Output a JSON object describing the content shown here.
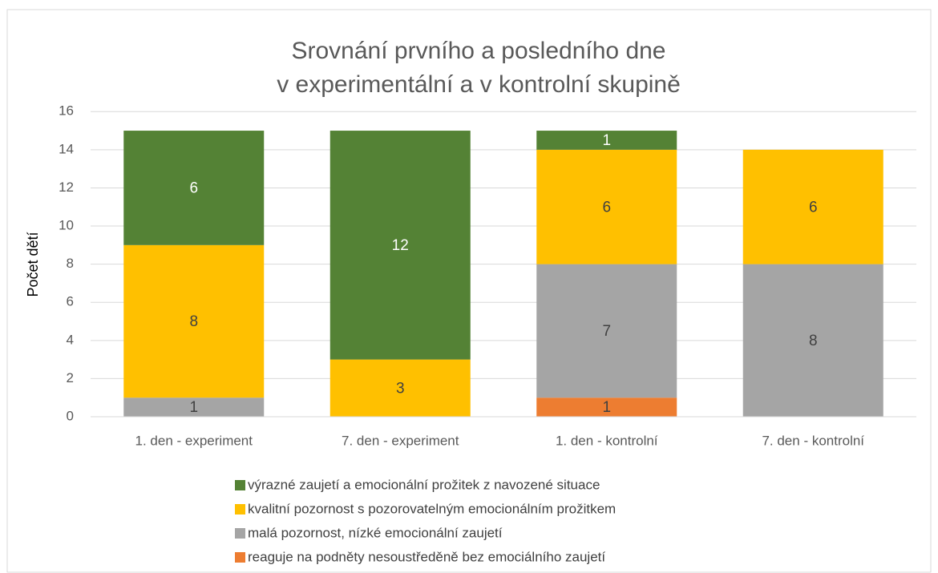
{
  "chart_data": {
    "type": "stacked_bar",
    "title": [
      "Srovnání prvního a posledního dne",
      "v experimentální a v kontrolní skupině"
    ],
    "ylabel": "Počet dětí",
    "categories": [
      "1. den - experiment",
      "7. den - experiment",
      "1. den - kontrolní",
      "7. den - kontrolní"
    ],
    "series": [
      {
        "name": "reaguje na podněty nesoustředěně bez emociálního zaujetí",
        "color": "#ed7d31",
        "label_color": "#404040",
        "values": [
          null,
          null,
          1,
          null
        ]
      },
      {
        "name": "malá pozornost, nízké emocionální zaujetí",
        "color": "#a5a5a5",
        "label_color": "#404040",
        "values": [
          1,
          null,
          7,
          8
        ]
      },
      {
        "name": "kvalitní pozornost s pozorovatelným emocionálním prožitkem",
        "color": "#ffc000",
        "label_color": "#404040",
        "values": [
          8,
          3,
          6,
          6
        ]
      },
      {
        "name": "výrazné zaujetí a emocionální prožitek z navozené situace",
        "color": "#548235",
        "label_color": "#ffffff",
        "values": [
          6,
          12,
          1,
          null
        ]
      }
    ],
    "ylim": [
      0,
      16
    ],
    "yticks": [
      0,
      2,
      4,
      6,
      8,
      10,
      12,
      14,
      16
    ],
    "grid": true
  }
}
